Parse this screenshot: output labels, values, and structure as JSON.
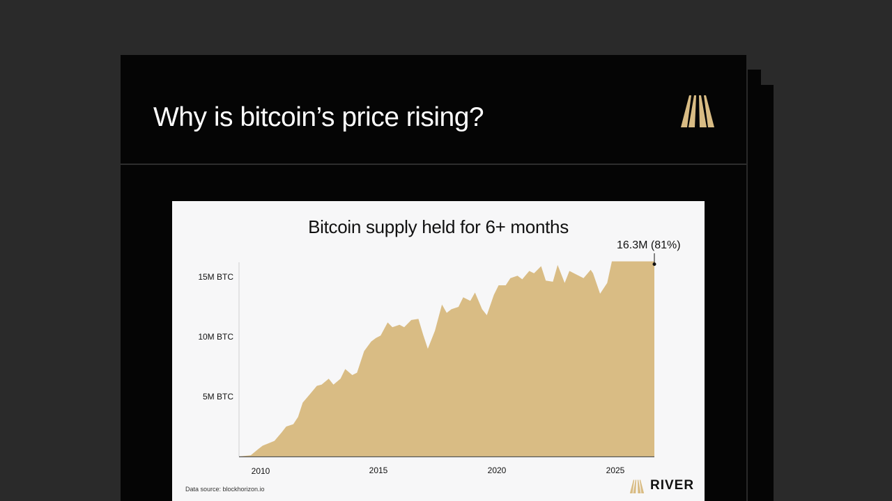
{
  "slide": {
    "title": "Why is bitcoin’s price rising?"
  },
  "colors": {
    "background": "#2a2a2a",
    "slide": "#050505",
    "area_fill": "#d9bc84",
    "logo_gold": "#d9bc84"
  },
  "icons": [
    "river-logo-icon"
  ],
  "footer": {
    "source": "Data source: blockhorizon.io",
    "brand": "RIVER"
  },
  "chart_data": {
    "type": "area",
    "title": "Bitcoin supply held for 6+ months",
    "annotation": "16.3M (81%)",
    "xlabel": "",
    "ylabel": "",
    "x_ticks": [
      "2010",
      "2015",
      "2020",
      "2025"
    ],
    "y_ticks": [
      "5M BTC",
      "10M BTC",
      "15M BTC"
    ],
    "xlim": [
      2009.0,
      2026.6
    ],
    "ylim": [
      0,
      16.3
    ],
    "grid": false,
    "x": [
      2009.0,
      2009.5,
      2009.8,
      2010.0,
      2010.5,
      2010.8,
      2011.0,
      2011.3,
      2011.5,
      2011.7,
      2012.0,
      2012.3,
      2012.5,
      2012.8,
      2013.0,
      2013.3,
      2013.5,
      2013.8,
      2014.0,
      2014.3,
      2014.6,
      2014.8,
      2015.0,
      2015.3,
      2015.5,
      2015.8,
      2016.0,
      2016.3,
      2016.6,
      2016.8,
      2017.0,
      2017.3,
      2017.6,
      2017.8,
      2018.0,
      2018.3,
      2018.5,
      2018.8,
      2019.0,
      2019.3,
      2019.5,
      2019.8,
      2020.0,
      2020.3,
      2020.5,
      2020.8,
      2021.0,
      2021.3,
      2021.5,
      2021.8,
      2022.0,
      2022.3,
      2022.5,
      2022.8,
      2023.0,
      2023.3,
      2023.6,
      2023.9,
      2024.0,
      2024.3,
      2024.6,
      2024.8,
      2025.0,
      2025.2,
      2025.4,
      2025.6,
      2025.8,
      2026.0,
      2026.2,
      2026.4,
      2026.6
    ],
    "values": [
      0,
      0.1,
      0.6,
      0.9,
      1.3,
      2.0,
      2.5,
      2.7,
      3.3,
      4.5,
      5.2,
      5.9,
      6.0,
      6.5,
      6.0,
      6.5,
      7.3,
      6.8,
      7.0,
      8.8,
      9.6,
      9.9,
      10.1,
      11.2,
      10.8,
      11.0,
      10.8,
      11.4,
      11.5,
      10.2,
      9.0,
      10.5,
      12.7,
      12.0,
      12.3,
      12.5,
      13.3,
      13.0,
      13.7,
      12.3,
      11.8,
      13.5,
      14.3,
      14.3,
      14.9,
      15.1,
      14.8,
      15.5,
      15.3,
      15.9,
      14.7,
      14.6,
      16.0,
      14.5,
      15.5,
      15.2,
      14.9,
      15.6,
      15.3,
      13.6,
      14.5,
      16.3,
      16.3,
      16.3,
      16.3,
      16.3,
      16.3,
      16.3,
      16.3,
      16.3,
      16.3
    ],
    "values_note_free": true
  }
}
